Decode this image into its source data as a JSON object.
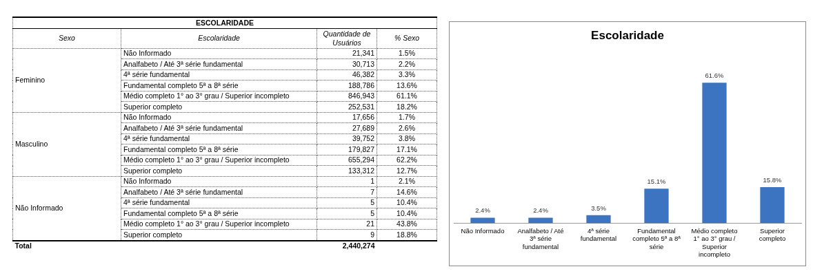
{
  "chart_data": [
    {
      "type": "other",
      "title": "ESCOLARIDADE",
      "annotations": [
        "Sexo",
        "Escolaridade",
        "Quantidade de Usuários",
        "% Sexo",
        "Feminino",
        "Não Informado",
        "21,341",
        "1.5%",
        "Analfabeto / Até 3ª série fundamental",
        "30,713",
        "2.2%",
        "4ª série fundamental",
        "46,382",
        "3.3%",
        "Fundamental completo 5ª a 8ª série",
        "188,786",
        "13.6%",
        "Médio completo 1° ao 3° grau / Superior incompleto",
        "846,943",
        "61.1%",
        "Superior completo",
        "252,531",
        "18.2%",
        "Masculino",
        "Não Informado",
        "17,656",
        "1.7%",
        "Analfabeto / Até 3ª série fundamental",
        "27,689",
        "2.6%",
        "4ª série fundamental",
        "39,752",
        "3.8%",
        "Fundamental completo 5ª a 8ª série",
        "179,827",
        "17.1%",
        "Médio completo 1° ao 3° grau / Superior incompleto",
        "655,294",
        "62.2%",
        "Superior completo",
        "133,312",
        "12.7%",
        "Não Informado",
        "Não Informado",
        "1",
        "2.1%",
        "Analfabeto / Até 3ª série fundamental",
        "7",
        "14.6%",
        "4ª série fundamental",
        "5",
        "10.4%",
        "Fundamental completo 5ª a 8ª série",
        "5",
        "10.4%",
        "Médio completo 1° ao 3° grau / Superior incompleto",
        "21",
        "43.8%",
        "Superior completo",
        "9",
        "18.8%",
        "Total",
        "2,440,274"
      ]
    },
    {
      "type": "bar",
      "title": "Escolaridade",
      "categories": [
        "Não Informado",
        "Analfabeto / Até 3ª série fundamental",
        "4ª série fundamental",
        "Fundamental completo 5ª a 8ª série",
        "Médio completo 1° ao 3° grau / Superior incompleto",
        "Superior completo"
      ],
      "values": [
        2.4,
        2.4,
        3.5,
        15.1,
        61.6,
        15.8
      ],
      "value_labels": [
        "2.4%",
        "2.4%",
        "3.5%",
        "15.1%",
        "61.6%",
        "15.8%"
      ],
      "color": "#3d74c2",
      "grid": false,
      "legend": false
    }
  ]
}
